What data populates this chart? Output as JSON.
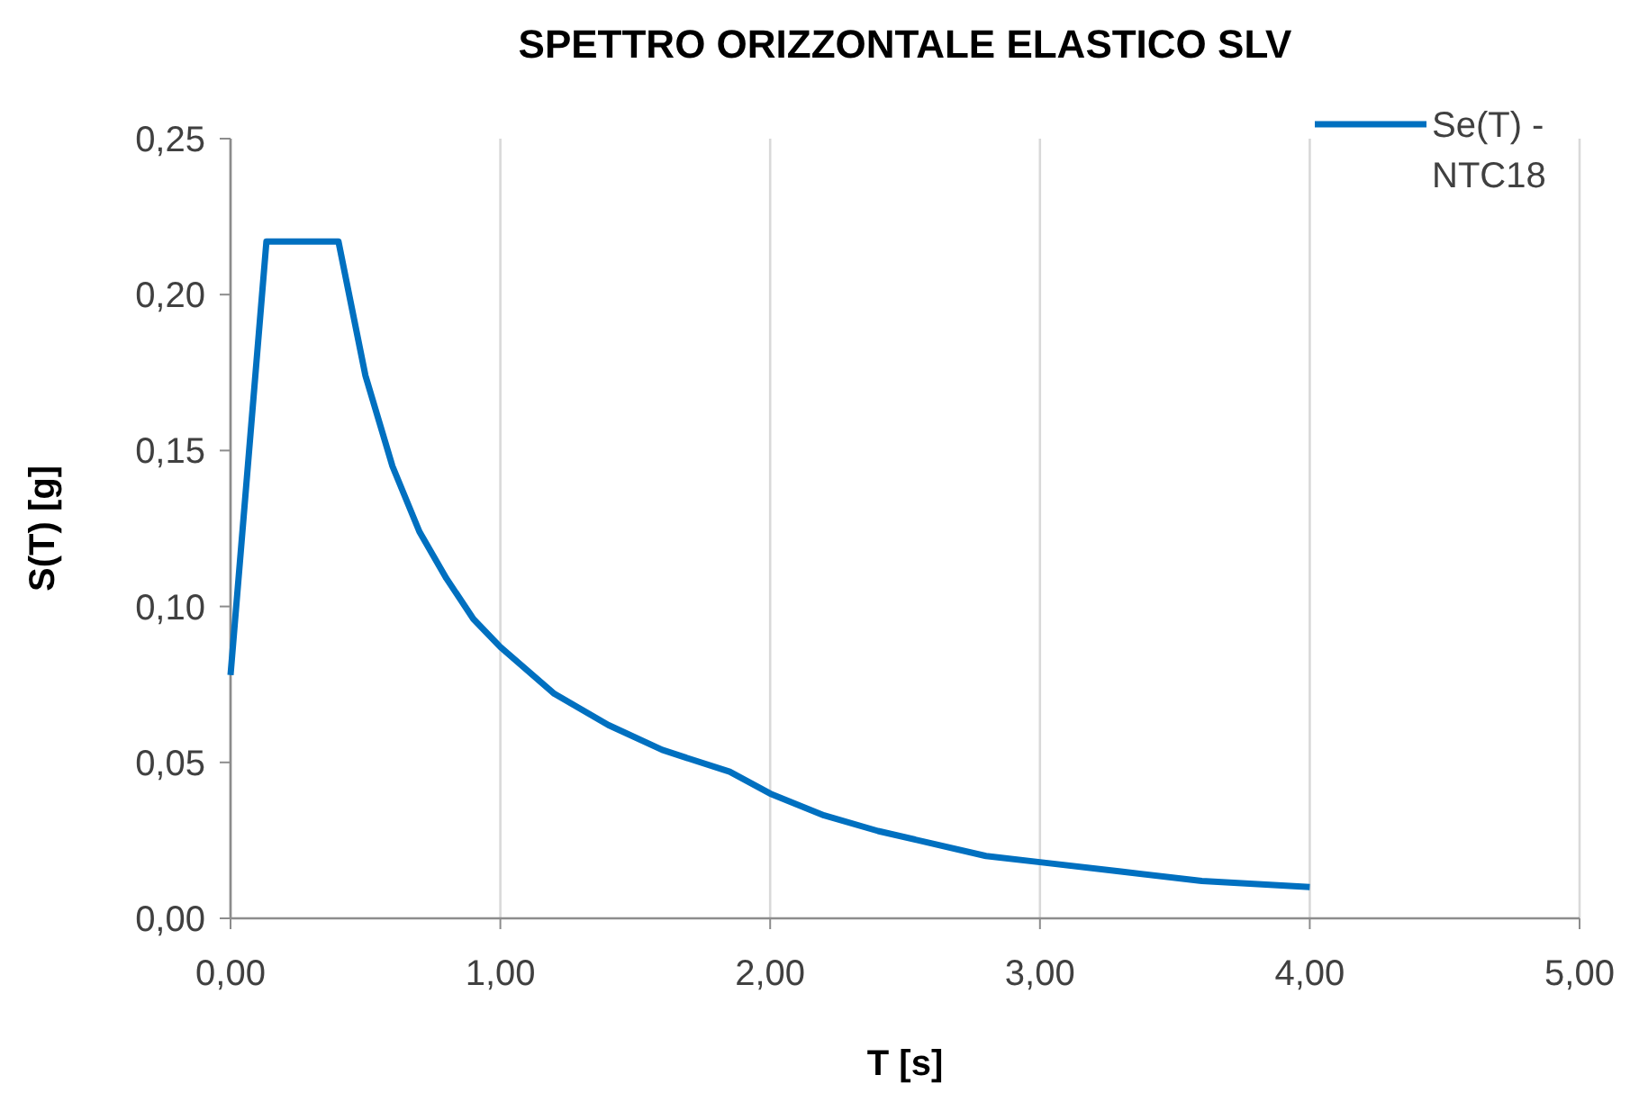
{
  "chart_data": {
    "type": "line",
    "title": "SPETTRO ORIZZONTALE ELASTICO SLV",
    "xlabel": "T [s]",
    "ylabel": "S(T) [g]",
    "x": [
      0,
      0.133,
      0.4,
      0.5,
      0.6,
      0.7,
      0.8,
      0.9,
      1.0,
      1.2,
      1.4,
      1.6,
      1.85,
      2.0,
      2.2,
      2.4,
      2.6,
      2.8,
      3.0,
      3.3,
      3.6,
      4.0
    ],
    "series": [
      {
        "name": "Se(T) - NTC18",
        "color": "#0070c0",
        "values": [
          0.078,
          0.217,
          0.217,
          0.174,
          0.145,
          0.124,
          0.109,
          0.096,
          0.087,
          0.072,
          0.062,
          0.054,
          0.047,
          0.04,
          0.033,
          0.028,
          0.024,
          0.02,
          0.018,
          0.015,
          0.012,
          0.01
        ]
      }
    ],
    "xlim": [
      0,
      5
    ],
    "ylim": [
      0,
      0.25
    ],
    "xticks": [
      {
        "value": 0,
        "label": "0,00"
      },
      {
        "value": 1,
        "label": "1,00"
      },
      {
        "value": 2,
        "label": "2,00"
      },
      {
        "value": 3,
        "label": "3,00"
      },
      {
        "value": 4,
        "label": "4,00"
      },
      {
        "value": 5,
        "label": "5,00"
      }
    ],
    "yticks": [
      {
        "value": 0,
        "label": "0,00"
      },
      {
        "value": 0.05,
        "label": "0,05"
      },
      {
        "value": 0.1,
        "label": "0,10"
      },
      {
        "value": 0.15,
        "label": "0,15"
      },
      {
        "value": 0.2,
        "label": "0,20"
      },
      {
        "value": 0.25,
        "label": "0,25"
      }
    ],
    "grid": "x",
    "legend": "top right",
    "marker": "none",
    "line_style": "solid"
  }
}
